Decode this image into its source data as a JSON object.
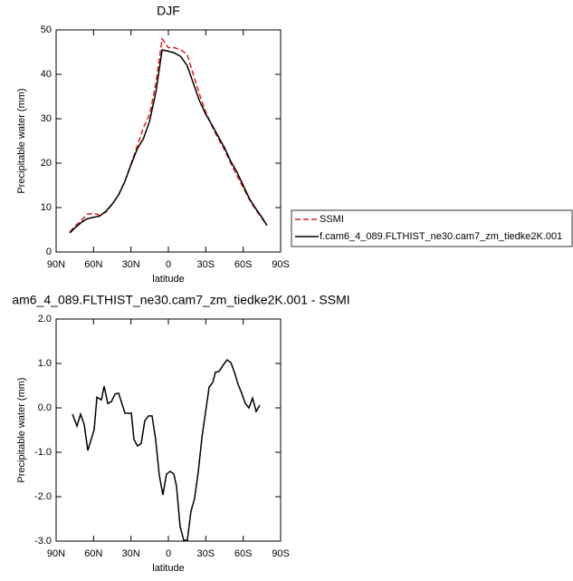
{
  "chart_data": [
    {
      "type": "line",
      "title": "DJF",
      "xlabel": "latitude",
      "ylabel": "Precipitable water (mm)",
      "x": [
        79,
        75,
        70,
        65,
        60,
        55,
        50,
        45,
        40,
        35,
        30,
        25,
        20,
        15,
        10,
        5,
        0,
        -5,
        -10,
        -15,
        -20,
        -25,
        -30,
        -35,
        -40,
        -45,
        -50,
        -55,
        -60,
        -65,
        -70,
        -75,
        -79
      ],
      "series": [
        {
          "name": "SSMI",
          "color": "#e41a1c",
          "dash": true,
          "values": [
            4.5,
            5.8,
            7,
            8.5,
            8.7,
            8.3,
            9.0,
            10.7,
            12.8,
            15.8,
            19.8,
            23.8,
            28,
            31,
            38,
            48,
            46,
            46,
            45.5,
            44.5,
            40,
            35.5,
            31.5,
            28.3,
            25.5,
            23,
            20,
            17.2,
            14.5,
            11.8,
            9.5,
            7.6,
            6
          ]
        },
        {
          "name": "f.cam6_4_089.FLTHIST_ne30.cam7_zm_tiedke2K.001",
          "color": "#000000",
          "dash": false,
          "values": [
            4.3,
            5.4,
            6.6,
            7.5,
            7.8,
            8.1,
            9.2,
            10.8,
            12.8,
            15.8,
            19.6,
            23.2,
            25.5,
            29.5,
            36,
            45.5,
            45.2,
            44.8,
            44,
            42,
            38,
            34,
            31,
            28.6,
            26,
            23.5,
            20.4,
            18,
            15,
            12,
            9.8,
            7.8,
            6
          ]
        }
      ],
      "xlim": [
        90,
        -90
      ],
      "xticks": [
        {
          "value": 90,
          "label": "90N"
        },
        {
          "value": 60,
          "label": "60N"
        },
        {
          "value": 30,
          "label": "30N"
        },
        0,
        {
          "value": -30,
          "label": "30S"
        },
        {
          "value": -60,
          "label": "60S"
        },
        {
          "value": -90,
          "label": "90S"
        }
      ],
      "ylim": [
        0,
        50
      ],
      "yticks": [
        0,
        10,
        20,
        30,
        40,
        50
      ],
      "legend": "right"
    },
    {
      "type": "line",
      "title": "am6_4_089.FLTHIST_ne30.cam7_zm_tiedke2K.001 - SSMI",
      "xlabel": "latitude",
      "ylabel": "Precipitable water (mm)",
      "x": [
        76.9,
        73.3,
        70.4,
        67.5,
        64.6,
        59.5,
        57.3,
        53.7,
        51.5,
        48.6,
        45.7,
        42.8,
        39.9,
        34.8,
        29.7,
        27.6,
        24.7,
        21.8,
        18.9,
        16.0,
        13.1,
        10.2,
        7.3,
        4.4,
        1.5,
        -1.5,
        -4.4,
        -6.5,
        -9.4,
        -12.3,
        -15.2,
        -18.1,
        -21.0,
        -24.0,
        -26.9,
        -32.7,
        -35.6,
        -37.7,
        -40.6,
        -44.3,
        -47.2,
        -50.1,
        -53.0,
        -55.9,
        -58.8,
        -61.7,
        -64.6,
        -67.5,
        -70.4,
        -73.3
      ],
      "series": [
        {
          "name": null,
          "color": "#000000",
          "dash": false,
          "values": [
            -0.14,
            -0.41,
            -0.14,
            -0.37,
            -0.96,
            -0.49,
            0.24,
            0.18,
            0.49,
            0.1,
            0.14,
            0.31,
            0.33,
            -0.12,
            -0.12,
            -0.71,
            -0.86,
            -0.8,
            -0.29,
            -0.18,
            -0.18,
            -0.71,
            -1.51,
            -1.96,
            -1.49,
            -1.43,
            -1.49,
            -1.76,
            -2.67,
            -2.98,
            -2.98,
            -2.33,
            -2.04,
            -1.43,
            -0.67,
            0.47,
            0.57,
            0.8,
            0.82,
            0.98,
            1.08,
            1.02,
            0.8,
            0.53,
            0.33,
            0.1,
            0.0,
            0.22,
            -0.08,
            0.06
          ]
        }
      ],
      "xlim": [
        90,
        -90
      ],
      "xticks": [
        {
          "value": 90,
          "label": "90N"
        },
        {
          "value": 60,
          "label": "60N"
        },
        {
          "value": 30,
          "label": "30N"
        },
        0,
        {
          "value": -30,
          "label": "30S"
        },
        {
          "value": -60,
          "label": "60S"
        },
        {
          "value": -90,
          "label": "90S"
        }
      ],
      "ylim": [
        -3,
        2
      ],
      "yticks": [
        {
          "value": -3,
          "label": "-3.0"
        },
        {
          "value": -2,
          "label": "-2.0"
        },
        {
          "value": -1,
          "label": "-1.0"
        },
        {
          "value": 0,
          "label": "0.0"
        },
        {
          "value": 1,
          "label": "1.0"
        },
        {
          "value": 2,
          "label": "2.0"
        }
      ]
    }
  ]
}
